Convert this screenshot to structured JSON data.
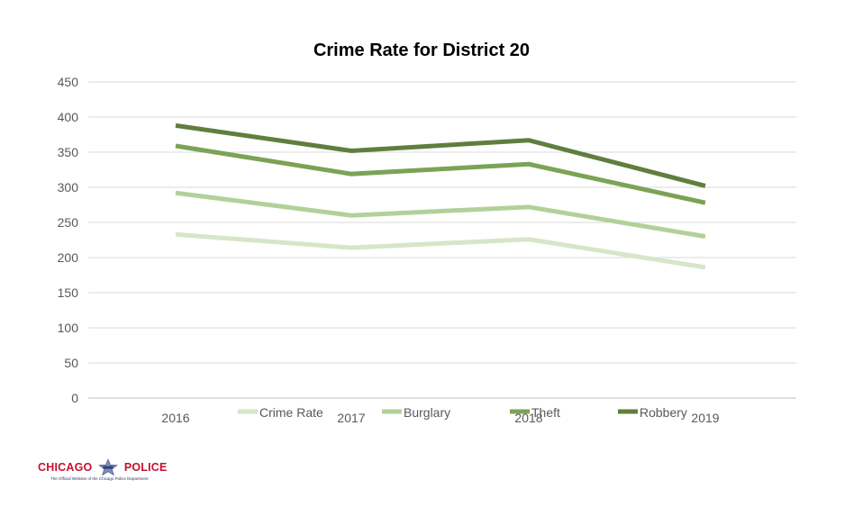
{
  "chart_data": {
    "type": "line",
    "title": "Crime Rate for District 20",
    "categories": [
      "2016",
      "2017",
      "2018",
      "2019"
    ],
    "xlabel": "",
    "ylabel": "",
    "ylim": [
      0,
      450
    ],
    "yticks": [
      "0",
      "50",
      "100",
      "150",
      "200",
      "250",
      "300",
      "350",
      "400",
      "450"
    ],
    "grid": true,
    "legend_position": "bottom",
    "series": [
      {
        "name": "Crime Rate",
        "values": [
          233,
          214,
          226,
          186
        ],
        "color": "#d6e6c7"
      },
      {
        "name": "Burglary",
        "values": [
          292,
          260,
          272,
          230
        ],
        "color": "#b2d19a"
      },
      {
        "name": "Theft",
        "values": [
          359,
          319,
          333,
          278
        ],
        "color": "#7ba356"
      },
      {
        "name": "Robbery",
        "values": [
          388,
          352,
          367,
          302
        ],
        "color": "#607e3e"
      }
    ]
  },
  "logo": {
    "left_word": "CHICAGO",
    "right_word": "POLICE",
    "tagline": "The Official Website of the Chicago Police Department",
    "color": "#c8102e"
  }
}
